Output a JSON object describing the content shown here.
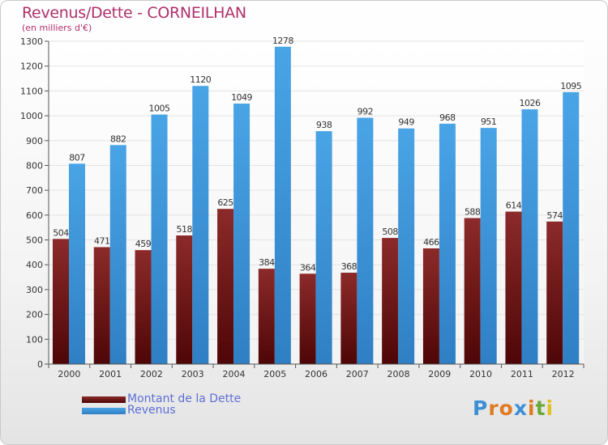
{
  "title": "Revenus/Dette - CORNEILHAN",
  "subtitle": "(en milliers d'€)",
  "logo": {
    "text": "Proxiti",
    "colors": [
      "#3a8fd6",
      "#e07b21",
      "#e07b21",
      "#3a8fd6",
      "#e07b21",
      "#6aa83a",
      "#e0c020"
    ]
  },
  "colors": {
    "dette": "#7a1a1a",
    "revenus": "#3a92d8",
    "title": "#b0306a",
    "legend_text": "#5d6fd7"
  },
  "chart_data": {
    "type": "bar",
    "title": "Revenus/Dette - CORNEILHAN",
    "subtitle": "(en milliers d'€)",
    "categories": [
      "2000",
      "2001",
      "2002",
      "2003",
      "2004",
      "2005",
      "2006",
      "2007",
      "2008",
      "2009",
      "2010",
      "2011",
      "2012"
    ],
    "series": [
      {
        "name": "Montant de la Dette",
        "values": [
          504,
          471,
          459,
          518,
          625,
          384,
          364,
          368,
          508,
          466,
          588,
          614,
          574
        ]
      },
      {
        "name": "Revenus",
        "values": [
          807,
          882,
          1005,
          1120,
          1049,
          1278,
          938,
          992,
          949,
          968,
          951,
          1026,
          1095
        ]
      }
    ],
    "ylim": [
      0,
      1300
    ],
    "yticks": [
      0,
      100,
      200,
      300,
      400,
      500,
      600,
      700,
      800,
      900,
      1000,
      1100,
      1200,
      1300
    ],
    "grid": true,
    "legend": "bottom-left"
  }
}
